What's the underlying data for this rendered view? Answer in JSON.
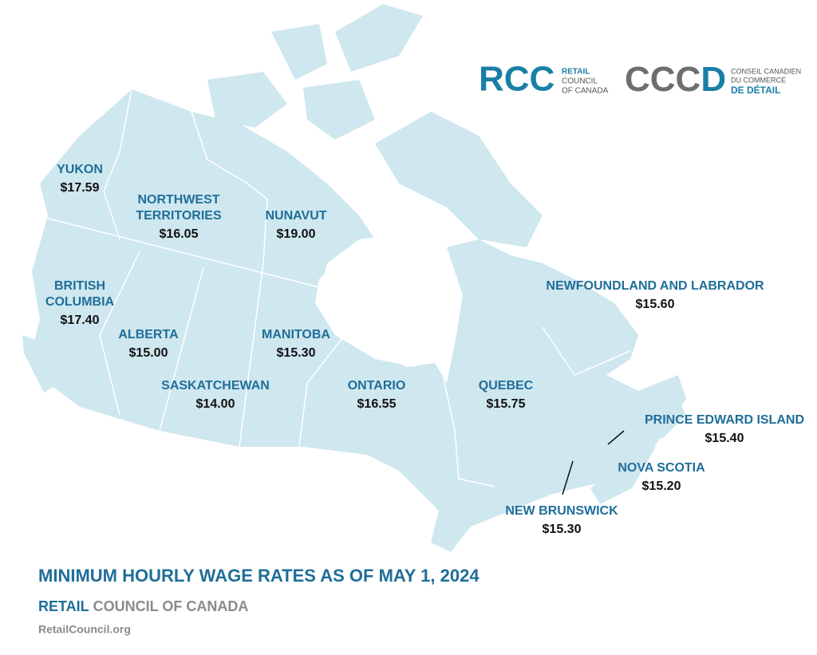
{
  "logos": {
    "rcc": {
      "mark": "RCC",
      "lines": [
        "RETAIL",
        "COUNCIL",
        "OF CANADA"
      ]
    },
    "cccd": {
      "mark_grey": "CCC",
      "mark_blue": "D",
      "lines": [
        "CONSEIL CANADIEN",
        "DU COMMERCE",
        "DE DÉTAIL"
      ]
    }
  },
  "regions": [
    {
      "name": [
        "YUKON"
      ],
      "wage": "$17.59"
    },
    {
      "name": [
        "NORTHWEST",
        "TERRITORIES"
      ],
      "wage": "$16.05"
    },
    {
      "name": [
        "NUNAVUT"
      ],
      "wage": "$19.00"
    },
    {
      "name": [
        "BRITISH",
        "COLUMBIA"
      ],
      "wage": "$17.40"
    },
    {
      "name": [
        "ALBERTA"
      ],
      "wage": "$15.00"
    },
    {
      "name": [
        "MANITOBA"
      ],
      "wage": "$15.30"
    },
    {
      "name": [
        "SASKATCHEWAN"
      ],
      "wage": "$14.00"
    },
    {
      "name": [
        "ONTARIO"
      ],
      "wage": "$16.55"
    },
    {
      "name": [
        "QUEBEC"
      ],
      "wage": "$15.75"
    },
    {
      "name": [
        "NEWFOUNDLAND AND LABRADOR"
      ],
      "wage": "$15.60"
    },
    {
      "name": [
        "PRINCE EDWARD ISLAND"
      ],
      "wage": "$15.40"
    },
    {
      "name": [
        "NOVA SCOTIA"
      ],
      "wage": "$15.20"
    },
    {
      "name": [
        "NEW BRUNSWICK"
      ],
      "wage": "$15.30"
    }
  ],
  "footer": {
    "title": "MINIMUM HOURLY WAGE RATES AS OF MAY 1, 2024",
    "org_blue": "RETAIL",
    "org_grey": "COUNCIL OF CANADA",
    "url": "RetailCouncil.org"
  }
}
